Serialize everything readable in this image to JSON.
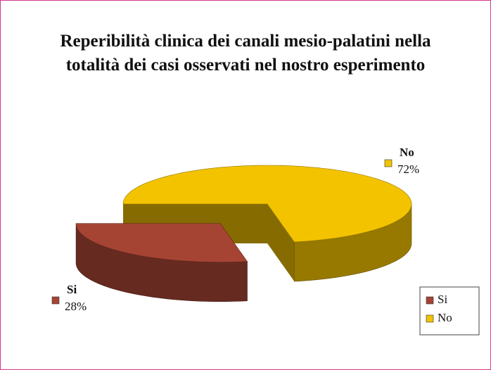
{
  "chart_data": {
    "type": "pie",
    "title": "Reperibilità clinica dei canali mesio-palatini nella totalità dei casi osservati nel nostro esperimento",
    "categories": [
      "Si",
      "No"
    ],
    "values": [
      28,
      72
    ],
    "value_labels": [
      "28%",
      "72%"
    ],
    "colors": [
      "#a64434",
      "#f3c300"
    ],
    "legend": "lower right"
  }
}
